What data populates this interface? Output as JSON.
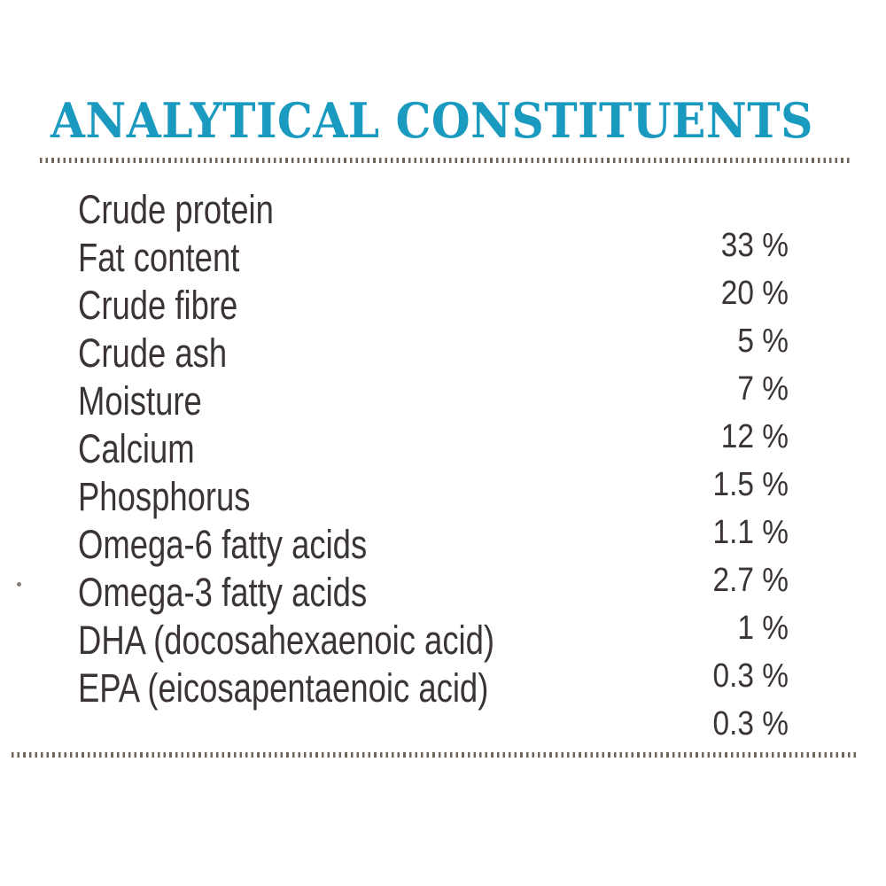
{
  "title": "ANALYTICAL CONSTITUENTS",
  "table": {
    "rows": [
      {
        "label": "Crude protein",
        "value": "33 %"
      },
      {
        "label": "Fat content",
        "value": "20 %"
      },
      {
        "label": "Crude fibre",
        "value": "5 %"
      },
      {
        "label": "Crude ash",
        "value": "7 %"
      },
      {
        "label": "Moisture",
        "value": "12 %"
      },
      {
        "label": "Calcium",
        "value": "1.5 %"
      },
      {
        "label": "Phosphorus",
        "value": "1.1 %"
      },
      {
        "label": "Omega-6 fatty acids",
        "value": "2.7 %"
      },
      {
        "label": "Omega-3 fatty acids",
        "value": "1 %"
      },
      {
        "label": "DHA (docosahexaenoic acid)",
        "value": "0.3 %"
      },
      {
        "label": "EPA (eicosapentaenoic acid)",
        "value": "0.3 %"
      }
    ]
  },
  "colors": {
    "title": "#1b9ac0",
    "text": "#3a3337",
    "rule_dots": "#6e6459",
    "background": "#ffffff"
  }
}
